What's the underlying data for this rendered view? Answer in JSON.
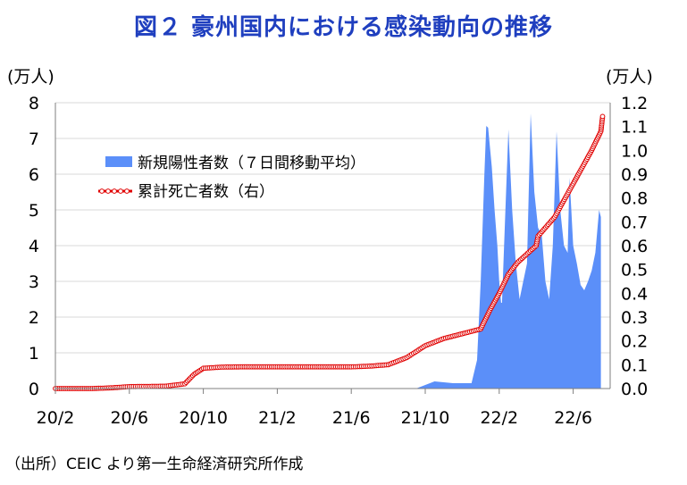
{
  "title": "図２ 豪州国内における感染動向の推移",
  "source_note": "（出所）CEIC より第一生命経済研究所作成",
  "colors": {
    "title": "#1f3fbf",
    "cases_fill": "#5b8ff9",
    "deaths_line": "#e00000",
    "grid": "#d9d9d9"
  },
  "chart_data": {
    "type": "area",
    "left_unit": "(万人)",
    "right_unit": "(万人)",
    "yleft_ticks": [
      "0",
      "1",
      "2",
      "3",
      "4",
      "5",
      "6",
      "7",
      "8"
    ],
    "yright_ticks": [
      "0.0",
      "0.1",
      "0.2",
      "0.3",
      "0.4",
      "0.5",
      "0.6",
      "0.7",
      "0.8",
      "0.9",
      "1.0",
      "1.1",
      "1.2"
    ],
    "ylim_left": [
      0,
      8
    ],
    "ylim_right": [
      0,
      1.2
    ],
    "x_tick_labels": [
      "20/2",
      "20/6",
      "20/10",
      "21/2",
      "21/6",
      "21/10",
      "22/2",
      "22/6"
    ],
    "x_tick_months": [
      0,
      4,
      8,
      12,
      16,
      20,
      24,
      28
    ],
    "xlim_months": [
      0,
      30
    ],
    "x_axis_note": "months since 2020-02",
    "grid": "horizontal",
    "legend_position": "top-left",
    "series": [
      {
        "name": "新規陽性者数（７日間移動平均）",
        "kind": "area",
        "axis": "left",
        "x": [
          0,
          19.5,
          20.5,
          21.5,
          22.5,
          22.8,
          23.0,
          23.2,
          23.3,
          23.4,
          23.6,
          23.75,
          23.9,
          24.0,
          24.1,
          24.15,
          24.3,
          24.5,
          24.7,
          24.9,
          25.1,
          25.3,
          25.5,
          25.7,
          25.9,
          26.1,
          26.3,
          26.5,
          26.7,
          26.9,
          27.1,
          27.3,
          27.5,
          27.7,
          27.8,
          27.9,
          28.0,
          28.2,
          28.4,
          28.6,
          28.8,
          29.0,
          29.2,
          29.4,
          29.5
        ],
        "values": [
          0,
          0,
          0.2,
          0.15,
          0.15,
          0.8,
          3.0,
          6.0,
          7.35,
          7.3,
          6.2,
          5.0,
          4.0,
          3.0,
          2.4,
          2.4,
          4.5,
          7.25,
          5.0,
          3.5,
          2.5,
          3.0,
          3.5,
          7.7,
          5.5,
          4.5,
          4.3,
          3.0,
          2.5,
          4.0,
          7.2,
          5.0,
          4.0,
          3.8,
          5.9,
          5.0,
          4.0,
          3.5,
          2.9,
          2.75,
          3.0,
          3.3,
          3.8,
          5.0,
          4.8
        ]
      },
      {
        "name": "累計死亡者数（右）",
        "kind": "line",
        "axis": "right",
        "x": [
          0,
          2,
          3,
          4,
          5,
          6,
          7,
          7.5,
          8,
          9,
          10,
          12,
          14,
          16,
          17,
          18,
          19,
          20,
          21,
          22,
          23,
          23.5,
          24,
          24.5,
          25,
          26,
          26.1,
          27,
          28,
          29,
          29.5,
          29.6
        ],
        "values": [
          0,
          0,
          0.003,
          0.008,
          0.009,
          0.01,
          0.02,
          0.06,
          0.085,
          0.09,
          0.091,
          0.091,
          0.091,
          0.091,
          0.094,
          0.1,
          0.13,
          0.18,
          0.21,
          0.23,
          0.25,
          0.33,
          0.4,
          0.48,
          0.53,
          0.6,
          0.64,
          0.72,
          0.86,
          1.0,
          1.08,
          1.15
        ]
      }
    ]
  }
}
